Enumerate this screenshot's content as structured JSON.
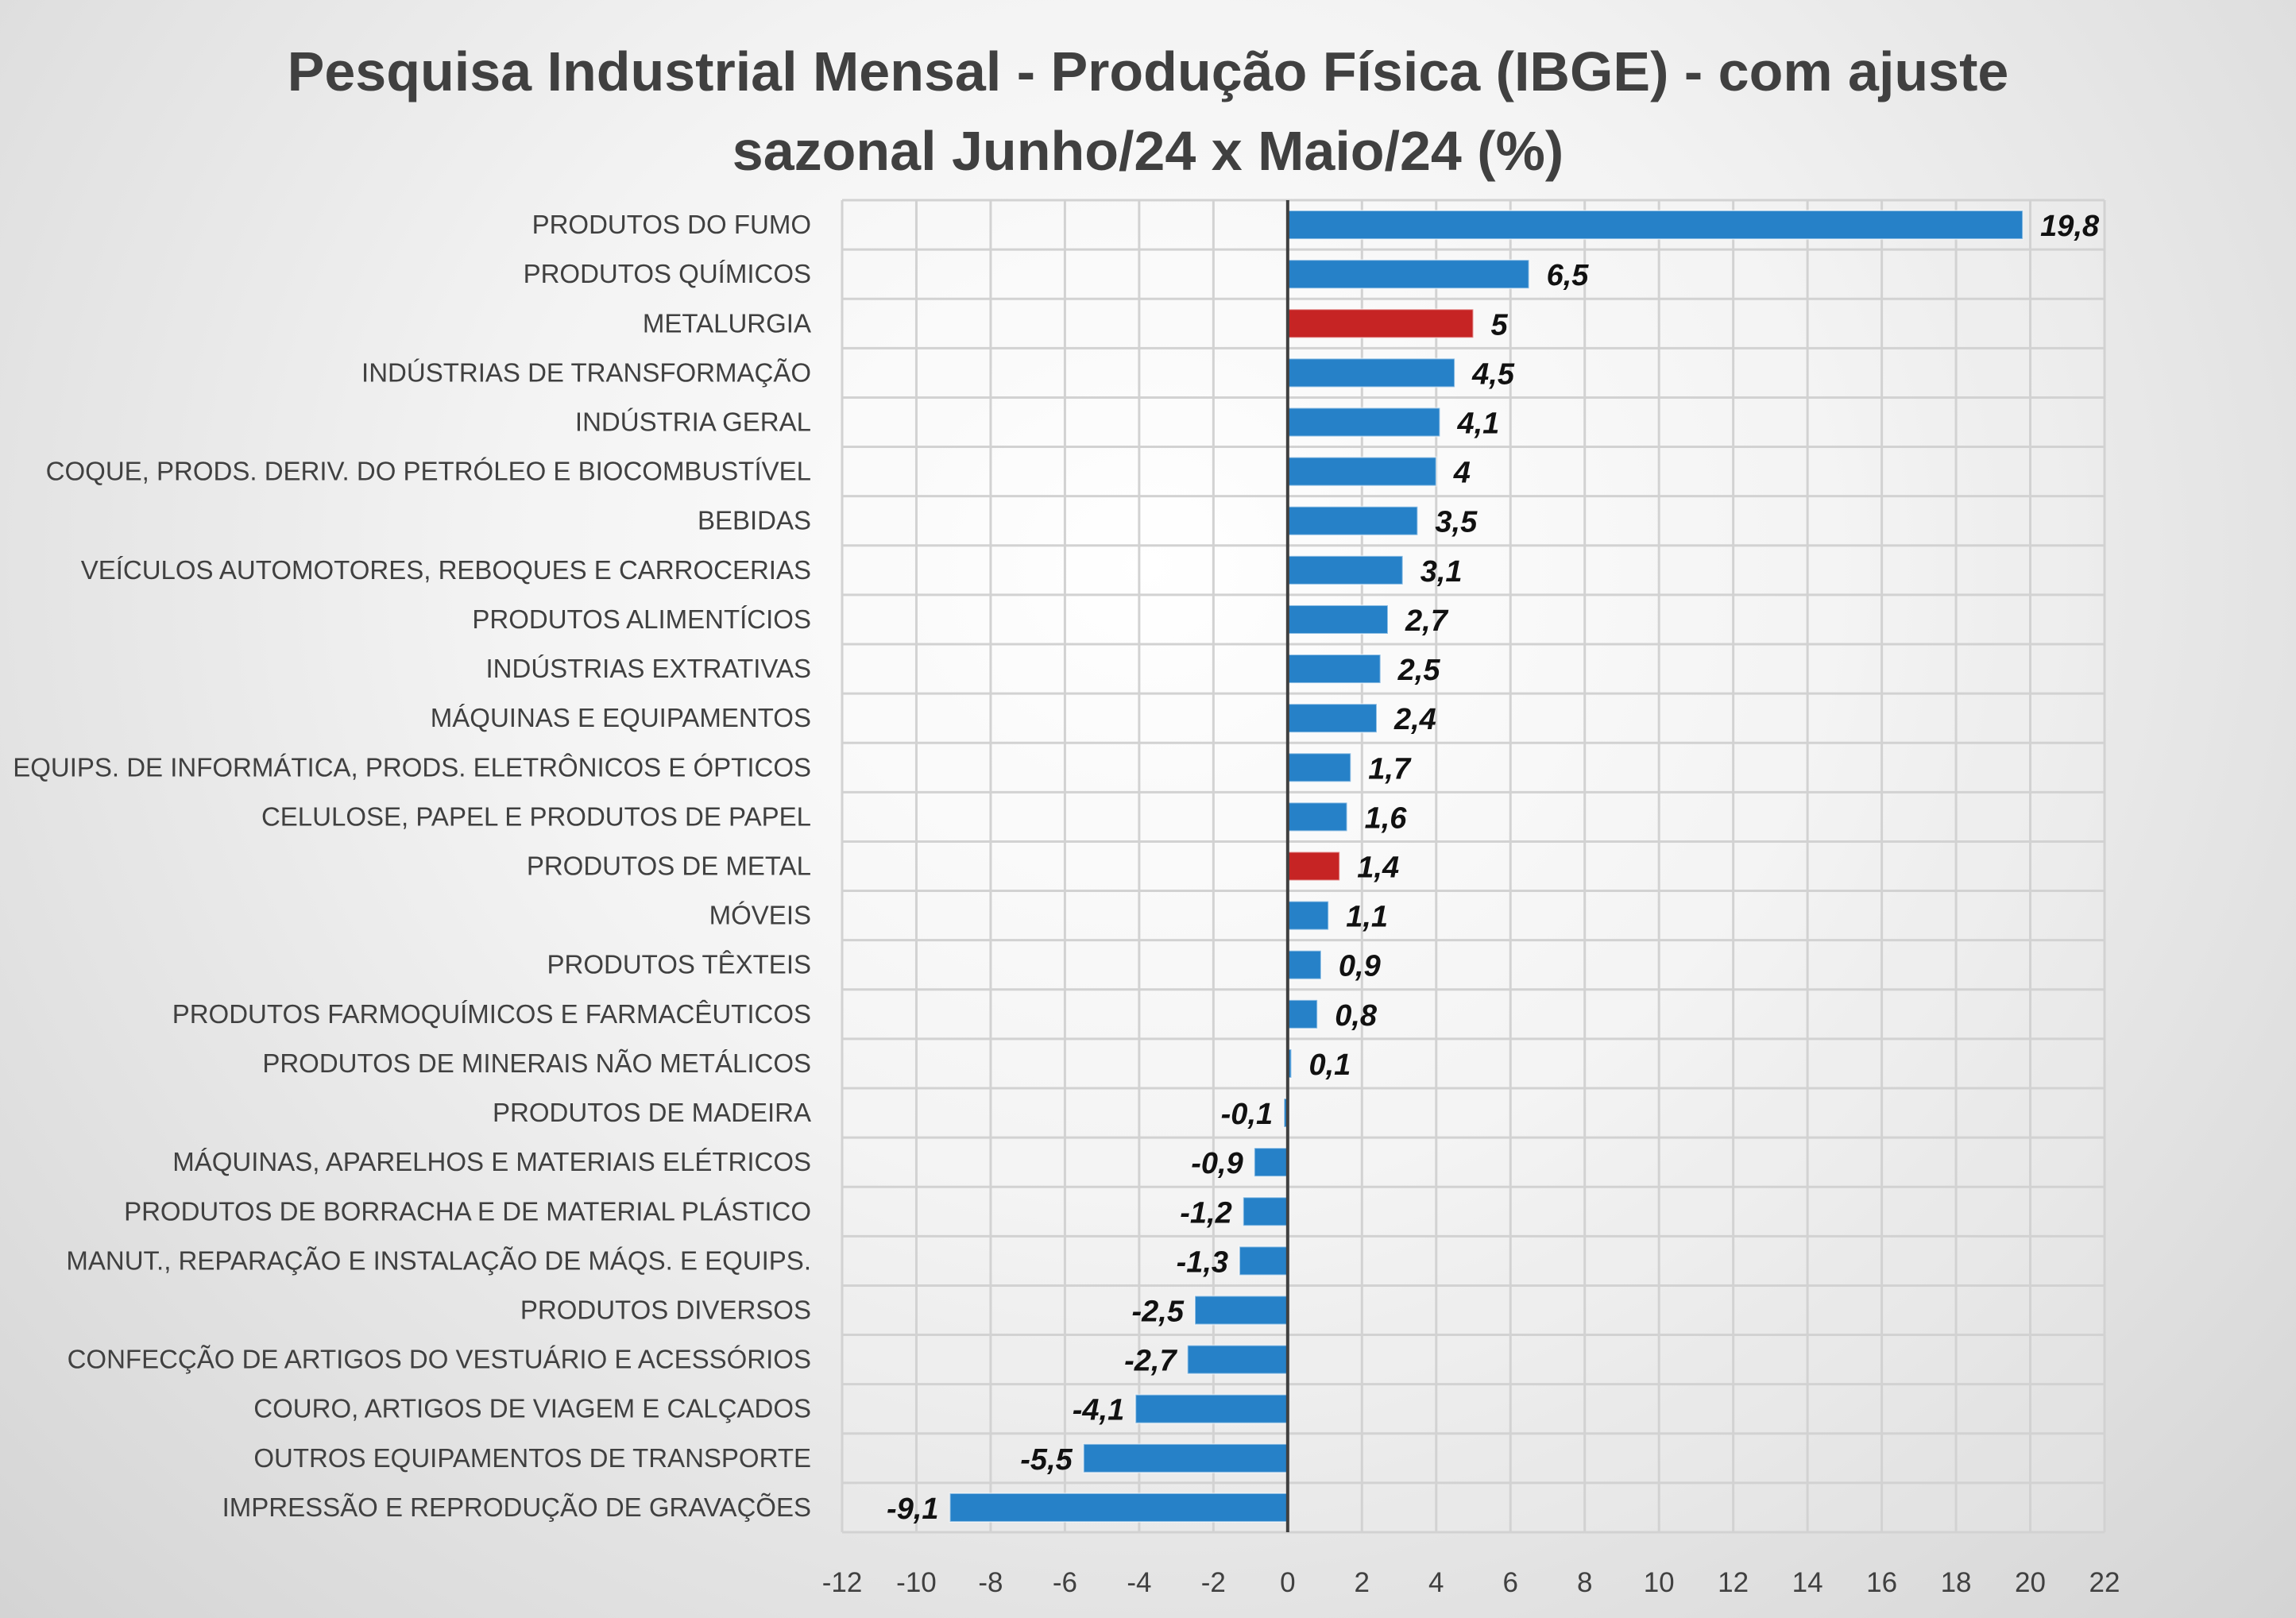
{
  "chart_data": {
    "type": "bar",
    "orientation": "horizontal",
    "title": "Pesquisa Industrial Mensal - Produção Física (IBGE) - com ajuste sazonal Junho/24 x Maio/24 (%)",
    "title_lines": [
      "Pesquisa Industrial Mensal - Produção Física (IBGE) - com ajuste",
      "sazonal Junho/24 x Maio/24 (%)"
    ],
    "xlim": [
      -12,
      22
    ],
    "xticks": [
      -12,
      -10,
      -8,
      -6,
      -4,
      -2,
      0,
      2,
      4,
      6,
      8,
      10,
      12,
      14,
      16,
      18,
      20,
      22
    ],
    "grid": true,
    "colors": {
      "default": "#2681c8",
      "highlight": "#c62424"
    },
    "categories": [
      "PRODUTOS DO FUMO",
      "PRODUTOS QUÍMICOS",
      "METALURGIA",
      "INDÚSTRIAS DE TRANSFORMAÇÃO",
      "INDÚSTRIA GERAL",
      "COQUE, PRODS. DERIV. DO PETRÓLEO E BIOCOMBUSTÍVEL",
      "BEBIDAS",
      "VEÍCULOS AUTOMOTORES, REBOQUES E CARROCERIAS",
      "PRODUTOS ALIMENTÍCIOS",
      "INDÚSTRIAS EXTRATIVAS",
      "MÁQUINAS E EQUIPAMENTOS",
      "EQUIPS. DE INFORMÁTICA, PRODS. ELETRÔNICOS E ÓPTICOS",
      "CELULOSE, PAPEL E PRODUTOS DE PAPEL",
      "PRODUTOS DE METAL",
      "MÓVEIS",
      "PRODUTOS TÊXTEIS",
      "PRODUTOS FARMOQUÍMICOS E FARMACÊUTICOS",
      "PRODUTOS DE MINERAIS NÃO METÁLICOS",
      "PRODUTOS DE MADEIRA",
      "MÁQUINAS, APARELHOS E MATERIAIS ELÉTRICOS",
      "PRODUTOS DE BORRACHA E DE MATERIAL PLÁSTICO",
      "MANUT., REPARAÇÃO E INSTALAÇÃO DE MÁQS. E EQUIPS.",
      "PRODUTOS DIVERSOS",
      "CONFECÇÃO DE ARTIGOS DO VESTUÁRIO E ACESSÓRIOS",
      "COURO, ARTIGOS DE VIAGEM E CALÇADOS",
      "OUTROS EQUIPAMENTOS DE TRANSPORTE",
      "IMPRESSÃO E REPRODUÇÃO DE GRAVAÇÕES"
    ],
    "values": [
      19.8,
      6.5,
      5,
      4.5,
      4.1,
      4,
      3.5,
      3.1,
      2.7,
      2.5,
      2.4,
      1.7,
      1.6,
      1.4,
      1.1,
      0.9,
      0.8,
      0.1,
      -0.1,
      -0.9,
      -1.2,
      -1.3,
      -2.5,
      -2.7,
      -4.1,
      -5.5,
      -9.1
    ],
    "value_labels": [
      "19,8",
      "6,5",
      "5",
      "4,5",
      "4,1",
      "4",
      "3,5",
      "3,1",
      "2,7",
      "2,5",
      "2,4",
      "1,7",
      "1,6",
      "1,4",
      "1,1",
      "0,9",
      "0,8",
      "0,1",
      "-0,1",
      "-0,9",
      "-1,2",
      "-1,3",
      "-2,5",
      "-2,7",
      "-4,1",
      "-5,5",
      "-9,1"
    ],
    "highlighted": [
      "METALURGIA",
      "PRODUTOS DE METAL"
    ]
  }
}
